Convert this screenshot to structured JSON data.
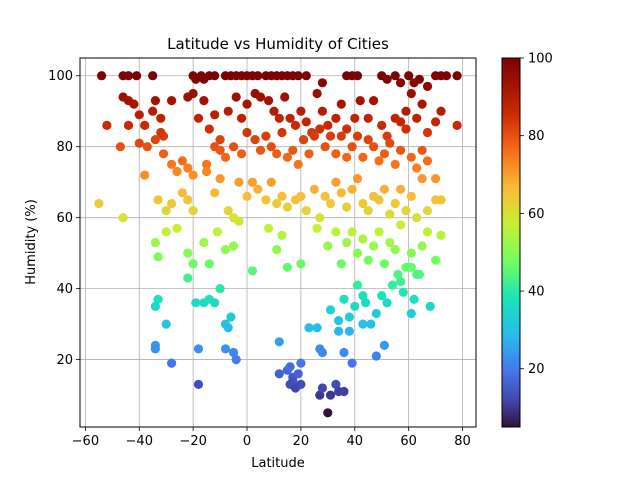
{
  "chart_data": {
    "type": "scatter",
    "title": "Latitude vs Humidity of Cities",
    "xlabel": "Latitude",
    "ylabel": "Humidity (%)",
    "xlim": [
      -62,
      85
    ],
    "ylim": [
      1,
      105
    ],
    "xticks": [
      -60,
      -40,
      -20,
      0,
      20,
      40,
      60,
      80
    ],
    "yticks": [
      20,
      40,
      60,
      80,
      100
    ],
    "grid": true,
    "legend": "none",
    "colormap": "turbo",
    "colorbar": {
      "min": 5,
      "max": 100,
      "ticks": [
        20,
        40,
        60,
        80,
        100
      ]
    },
    "points": [
      [
        -54,
        100
      ],
      [
        -46,
        100
      ],
      [
        -44,
        100
      ],
      [
        -41,
        100
      ],
      [
        -35,
        100
      ],
      [
        -20,
        100
      ],
      [
        -19,
        99
      ],
      [
        -17,
        100
      ],
      [
        -16,
        99
      ],
      [
        -14,
        100
      ],
      [
        -12,
        100
      ],
      [
        -8,
        100
      ],
      [
        -6,
        100
      ],
      [
        -4,
        100
      ],
      [
        -2,
        100
      ],
      [
        0,
        100
      ],
      [
        2,
        100
      ],
      [
        4,
        100
      ],
      [
        7,
        100
      ],
      [
        9,
        100
      ],
      [
        11,
        100
      ],
      [
        13,
        100
      ],
      [
        15,
        100
      ],
      [
        17,
        100
      ],
      [
        19,
        100
      ],
      [
        22,
        100
      ],
      [
        28,
        98
      ],
      [
        37,
        100
      ],
      [
        39,
        100
      ],
      [
        41,
        100
      ],
      [
        50,
        100
      ],
      [
        52,
        99
      ],
      [
        55,
        100
      ],
      [
        57,
        98
      ],
      [
        60,
        100
      ],
      [
        62,
        98
      ],
      [
        64,
        99
      ],
      [
        67,
        97
      ],
      [
        70,
        100
      ],
      [
        72,
        100
      ],
      [
        74,
        100
      ],
      [
        78,
        100
      ],
      [
        -52,
        86
      ],
      [
        -46,
        94
      ],
      [
        -44,
        93
      ],
      [
        -42,
        92
      ],
      [
        -40,
        89
      ],
      [
        -38,
        86
      ],
      [
        -35,
        90
      ],
      [
        -34,
        93
      ],
      [
        -32,
        88
      ],
      [
        -31,
        83
      ],
      [
        -28,
        93
      ],
      [
        -22,
        94
      ],
      [
        -20,
        95
      ],
      [
        -18,
        88
      ],
      [
        -16,
        93
      ],
      [
        -14,
        85
      ],
      [
        -12,
        89
      ],
      [
        -10,
        82
      ],
      [
        -7,
        90
      ],
      [
        -4,
        94
      ],
      [
        -2,
        88
      ],
      [
        0,
        92
      ],
      [
        3,
        95
      ],
      [
        5,
        94
      ],
      [
        8,
        93
      ],
      [
        10,
        90
      ],
      [
        12,
        88
      ],
      [
        14,
        94
      ],
      [
        16,
        88
      ],
      [
        18,
        86
      ],
      [
        20,
        90
      ],
      [
        22,
        87
      ],
      [
        24,
        84
      ],
      [
        26,
        95
      ],
      [
        28,
        90
      ],
      [
        30,
        86
      ],
      [
        33,
        88
      ],
      [
        35,
        92
      ],
      [
        37,
        85
      ],
      [
        40,
        88
      ],
      [
        42,
        93
      ],
      [
        45,
        88
      ],
      [
        47,
        93
      ],
      [
        50,
        86
      ],
      [
        52,
        83
      ],
      [
        55,
        88
      ],
      [
        57,
        87
      ],
      [
        59,
        90
      ],
      [
        61,
        95
      ],
      [
        63,
        88
      ],
      [
        65,
        92
      ],
      [
        67,
        84
      ],
      [
        70,
        87
      ],
      [
        72,
        90
      ],
      [
        78,
        86
      ],
      [
        -47,
        80
      ],
      [
        -44,
        86
      ],
      [
        -40,
        81
      ],
      [
        -37,
        80
      ],
      [
        -34,
        82
      ],
      [
        -32,
        84
      ],
      [
        -31,
        78
      ],
      [
        -28,
        75
      ],
      [
        -24,
        76
      ],
      [
        -22,
        74
      ],
      [
        -20,
        72
      ],
      [
        -15,
        75
      ],
      [
        -12,
        80
      ],
      [
        -10,
        79
      ],
      [
        -8,
        77
      ],
      [
        -5,
        80
      ],
      [
        -2,
        78
      ],
      [
        0,
        84
      ],
      [
        3,
        82
      ],
      [
        5,
        79
      ],
      [
        7,
        83
      ],
      [
        9,
        80
      ],
      [
        11,
        78
      ],
      [
        13,
        84
      ],
      [
        15,
        77
      ],
      [
        17,
        79
      ],
      [
        19,
        75
      ],
      [
        21,
        82
      ],
      [
        23,
        78
      ],
      [
        25,
        83
      ],
      [
        27,
        85
      ],
      [
        29,
        80
      ],
      [
        31,
        83
      ],
      [
        33,
        78
      ],
      [
        35,
        83
      ],
      [
        37,
        77
      ],
      [
        39,
        80
      ],
      [
        41,
        83
      ],
      [
        43,
        77
      ],
      [
        45,
        82
      ],
      [
        47,
        80
      ],
      [
        49,
        76
      ],
      [
        51,
        78
      ],
      [
        53,
        81
      ],
      [
        55,
        75
      ],
      [
        57,
        79
      ],
      [
        59,
        85
      ],
      [
        61,
        77
      ],
      [
        63,
        74
      ],
      [
        65,
        79
      ],
      [
        67,
        76
      ],
      [
        70,
        71
      ],
      [
        -38,
        72
      ],
      [
        -33,
        65
      ],
      [
        -30,
        62
      ],
      [
        -28,
        64
      ],
      [
        -26,
        73
      ],
      [
        -24,
        67
      ],
      [
        -22,
        65
      ],
      [
        -20,
        62
      ],
      [
        -15,
        73
      ],
      [
        -12,
        67
      ],
      [
        -10,
        71
      ],
      [
        -7,
        62
      ],
      [
        -5,
        60
      ],
      [
        -3,
        70
      ],
      [
        0,
        66
      ],
      [
        2,
        70
      ],
      [
        4,
        68
      ],
      [
        7,
        65
      ],
      [
        9,
        70
      ],
      [
        11,
        64
      ],
      [
        13,
        66
      ],
      [
        15,
        63
      ],
      [
        18,
        65
      ],
      [
        20,
        66
      ],
      [
        22,
        62
      ],
      [
        25,
        68
      ],
      [
        27,
        60
      ],
      [
        29,
        66
      ],
      [
        31,
        64
      ],
      [
        33,
        70
      ],
      [
        35,
        67
      ],
      [
        37,
        63
      ],
      [
        39,
        68
      ],
      [
        41,
        71
      ],
      [
        43,
        64
      ],
      [
        45,
        62
      ],
      [
        47,
        66
      ],
      [
        49,
        65
      ],
      [
        51,
        68
      ],
      [
        53,
        61
      ],
      [
        55,
        64
      ],
      [
        57,
        68
      ],
      [
        59,
        62
      ],
      [
        61,
        66
      ],
      [
        63,
        60
      ],
      [
        65,
        71
      ],
      [
        67,
        62
      ],
      [
        70,
        65
      ],
      [
        72,
        65
      ],
      [
        -55,
        64
      ],
      [
        -46,
        60
      ],
      [
        -34,
        53
      ],
      [
        -33,
        49
      ],
      [
        -30,
        56
      ],
      [
        -26,
        57
      ],
      [
        -22,
        50
      ],
      [
        -20,
        47
      ],
      [
        -16,
        53
      ],
      [
        -14,
        47
      ],
      [
        -11,
        56
      ],
      [
        -8,
        51
      ],
      [
        -5,
        52
      ],
      [
        -3,
        59
      ],
      [
        2,
        45
      ],
      [
        8,
        57
      ],
      [
        11,
        51
      ],
      [
        13,
        55
      ],
      [
        15,
        46
      ],
      [
        20,
        47
      ],
      [
        26,
        57
      ],
      [
        30,
        52
      ],
      [
        33,
        56
      ],
      [
        35,
        47
      ],
      [
        37,
        53
      ],
      [
        39,
        56
      ],
      [
        41,
        50
      ],
      [
        43,
        54
      ],
      [
        45,
        48
      ],
      [
        47,
        52
      ],
      [
        49,
        56
      ],
      [
        51,
        47
      ],
      [
        53,
        53
      ],
      [
        55,
        51
      ],
      [
        57,
        58
      ],
      [
        59,
        46
      ],
      [
        61,
        50
      ],
      [
        63,
        44
      ],
      [
        65,
        52
      ],
      [
        67,
        56
      ],
      [
        70,
        48
      ],
      [
        72,
        55
      ],
      [
        -33,
        37
      ],
      [
        -34,
        35
      ],
      [
        -30,
        30
      ],
      [
        -22,
        43
      ],
      [
        -19,
        36
      ],
      [
        -16,
        36
      ],
      [
        -14,
        37
      ],
      [
        -12,
        36
      ],
      [
        -10,
        40
      ],
      [
        -6,
        32
      ],
      [
        -8,
        30
      ],
      [
        -7,
        29
      ],
      [
        23,
        29
      ],
      [
        26,
        29
      ],
      [
        31,
        34
      ],
      [
        34,
        31
      ],
      [
        36,
        37
      ],
      [
        38,
        32
      ],
      [
        40,
        35
      ],
      [
        41,
        41
      ],
      [
        43,
        38
      ],
      [
        44,
        36
      ],
      [
        46,
        30
      ],
      [
        48,
        33
      ],
      [
        50,
        38
      ],
      [
        52,
        36
      ],
      [
        54,
        41
      ],
      [
        56,
        44
      ],
      [
        58,
        39
      ],
      [
        61,
        46
      ],
      [
        62,
        37
      ],
      [
        64,
        44
      ],
      [
        68,
        35
      ],
      [
        60,
        46
      ],
      [
        61,
        33
      ],
      [
        57,
        42
      ],
      [
        -34,
        24
      ],
      [
        -34,
        23
      ],
      [
        -28,
        19
      ],
      [
        -18,
        23
      ],
      [
        -8,
        23
      ],
      [
        -5,
        22
      ],
      [
        -4,
        20
      ],
      [
        12,
        25
      ],
      [
        12,
        16
      ],
      [
        15,
        17
      ],
      [
        16,
        18
      ],
      [
        17,
        15
      ],
      [
        17,
        14
      ],
      [
        19,
        16
      ],
      [
        20,
        19
      ],
      [
        27,
        23
      ],
      [
        28,
        22
      ],
      [
        34,
        28
      ],
      [
        36,
        22
      ],
      [
        38,
        28
      ],
      [
        39,
        19
      ],
      [
        43,
        30
      ],
      [
        48,
        21
      ],
      [
        51,
        24
      ],
      [
        -18,
        13
      ],
      [
        16,
        13
      ],
      [
        18,
        12
      ],
      [
        20,
        13
      ],
      [
        27,
        10
      ],
      [
        28,
        12
      ],
      [
        31,
        10
      ],
      [
        33,
        13
      ],
      [
        34,
        11
      ],
      [
        36,
        11
      ],
      [
        30,
        5
      ]
    ]
  }
}
